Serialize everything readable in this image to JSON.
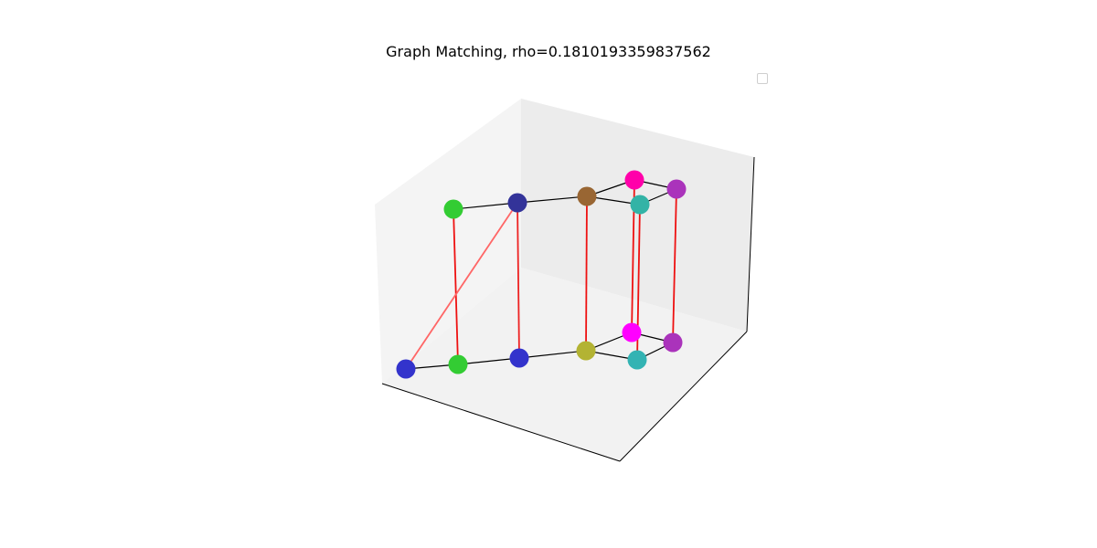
{
  "chart_data": {
    "type": "scatter",
    "title": "Graph Matching, rho=0.1810193359837562",
    "projection": "3d",
    "axis_ticks": "hidden",
    "legend_placement": "top-right",
    "legend_entries": [],
    "edge_color": "#000000",
    "match_color": "#ff0000",
    "graphs": [
      {
        "layer": "top",
        "nodes": [
          {
            "id": "t0",
            "color": "#33cc33"
          },
          {
            "id": "t1",
            "color": "#333399"
          },
          {
            "id": "t2",
            "color": "#996633"
          },
          {
            "id": "t3",
            "color": "#ff00aa"
          },
          {
            "id": "t4",
            "color": "#33b3a6"
          },
          {
            "id": "t5",
            "color": "#aa33bb"
          }
        ],
        "edges": [
          [
            "t0",
            "t1"
          ],
          [
            "t1",
            "t2"
          ],
          [
            "t2",
            "t3"
          ],
          [
            "t2",
            "t4"
          ],
          [
            "t3",
            "t5"
          ],
          [
            "t4",
            "t5"
          ]
        ]
      },
      {
        "layer": "bottom",
        "nodes": [
          {
            "id": "b0",
            "color": "#3333cc"
          },
          {
            "id": "b1",
            "color": "#33cc33"
          },
          {
            "id": "b2",
            "color": "#3333cc"
          },
          {
            "id": "b3",
            "color": "#b3b333"
          },
          {
            "id": "b4",
            "color": "#ff00ff"
          },
          {
            "id": "b5",
            "color": "#33b3b3"
          },
          {
            "id": "b6",
            "color": "#aa33bb"
          }
        ],
        "edges": [
          [
            "b0",
            "b1"
          ],
          [
            "b1",
            "b2"
          ],
          [
            "b2",
            "b3"
          ],
          [
            "b3",
            "b4"
          ],
          [
            "b3",
            "b5"
          ],
          [
            "b4",
            "b6"
          ],
          [
            "b5",
            "b6"
          ]
        ]
      }
    ],
    "matches": [
      {
        "from": "t0",
        "to": "b1",
        "color": "#ee1111"
      },
      {
        "from": "t1",
        "to": "b0",
        "color": "#ff6666"
      },
      {
        "from": "t1",
        "to": "b2",
        "color": "#ee2222"
      },
      {
        "from": "t2",
        "to": "b3",
        "color": "#ee1111"
      },
      {
        "from": "t3",
        "to": "b4",
        "color": "#ee1111"
      },
      {
        "from": "t4",
        "to": "b5",
        "color": "#ee1111"
      },
      {
        "from": "t5",
        "to": "b6",
        "color": "#ee1111"
      }
    ]
  }
}
